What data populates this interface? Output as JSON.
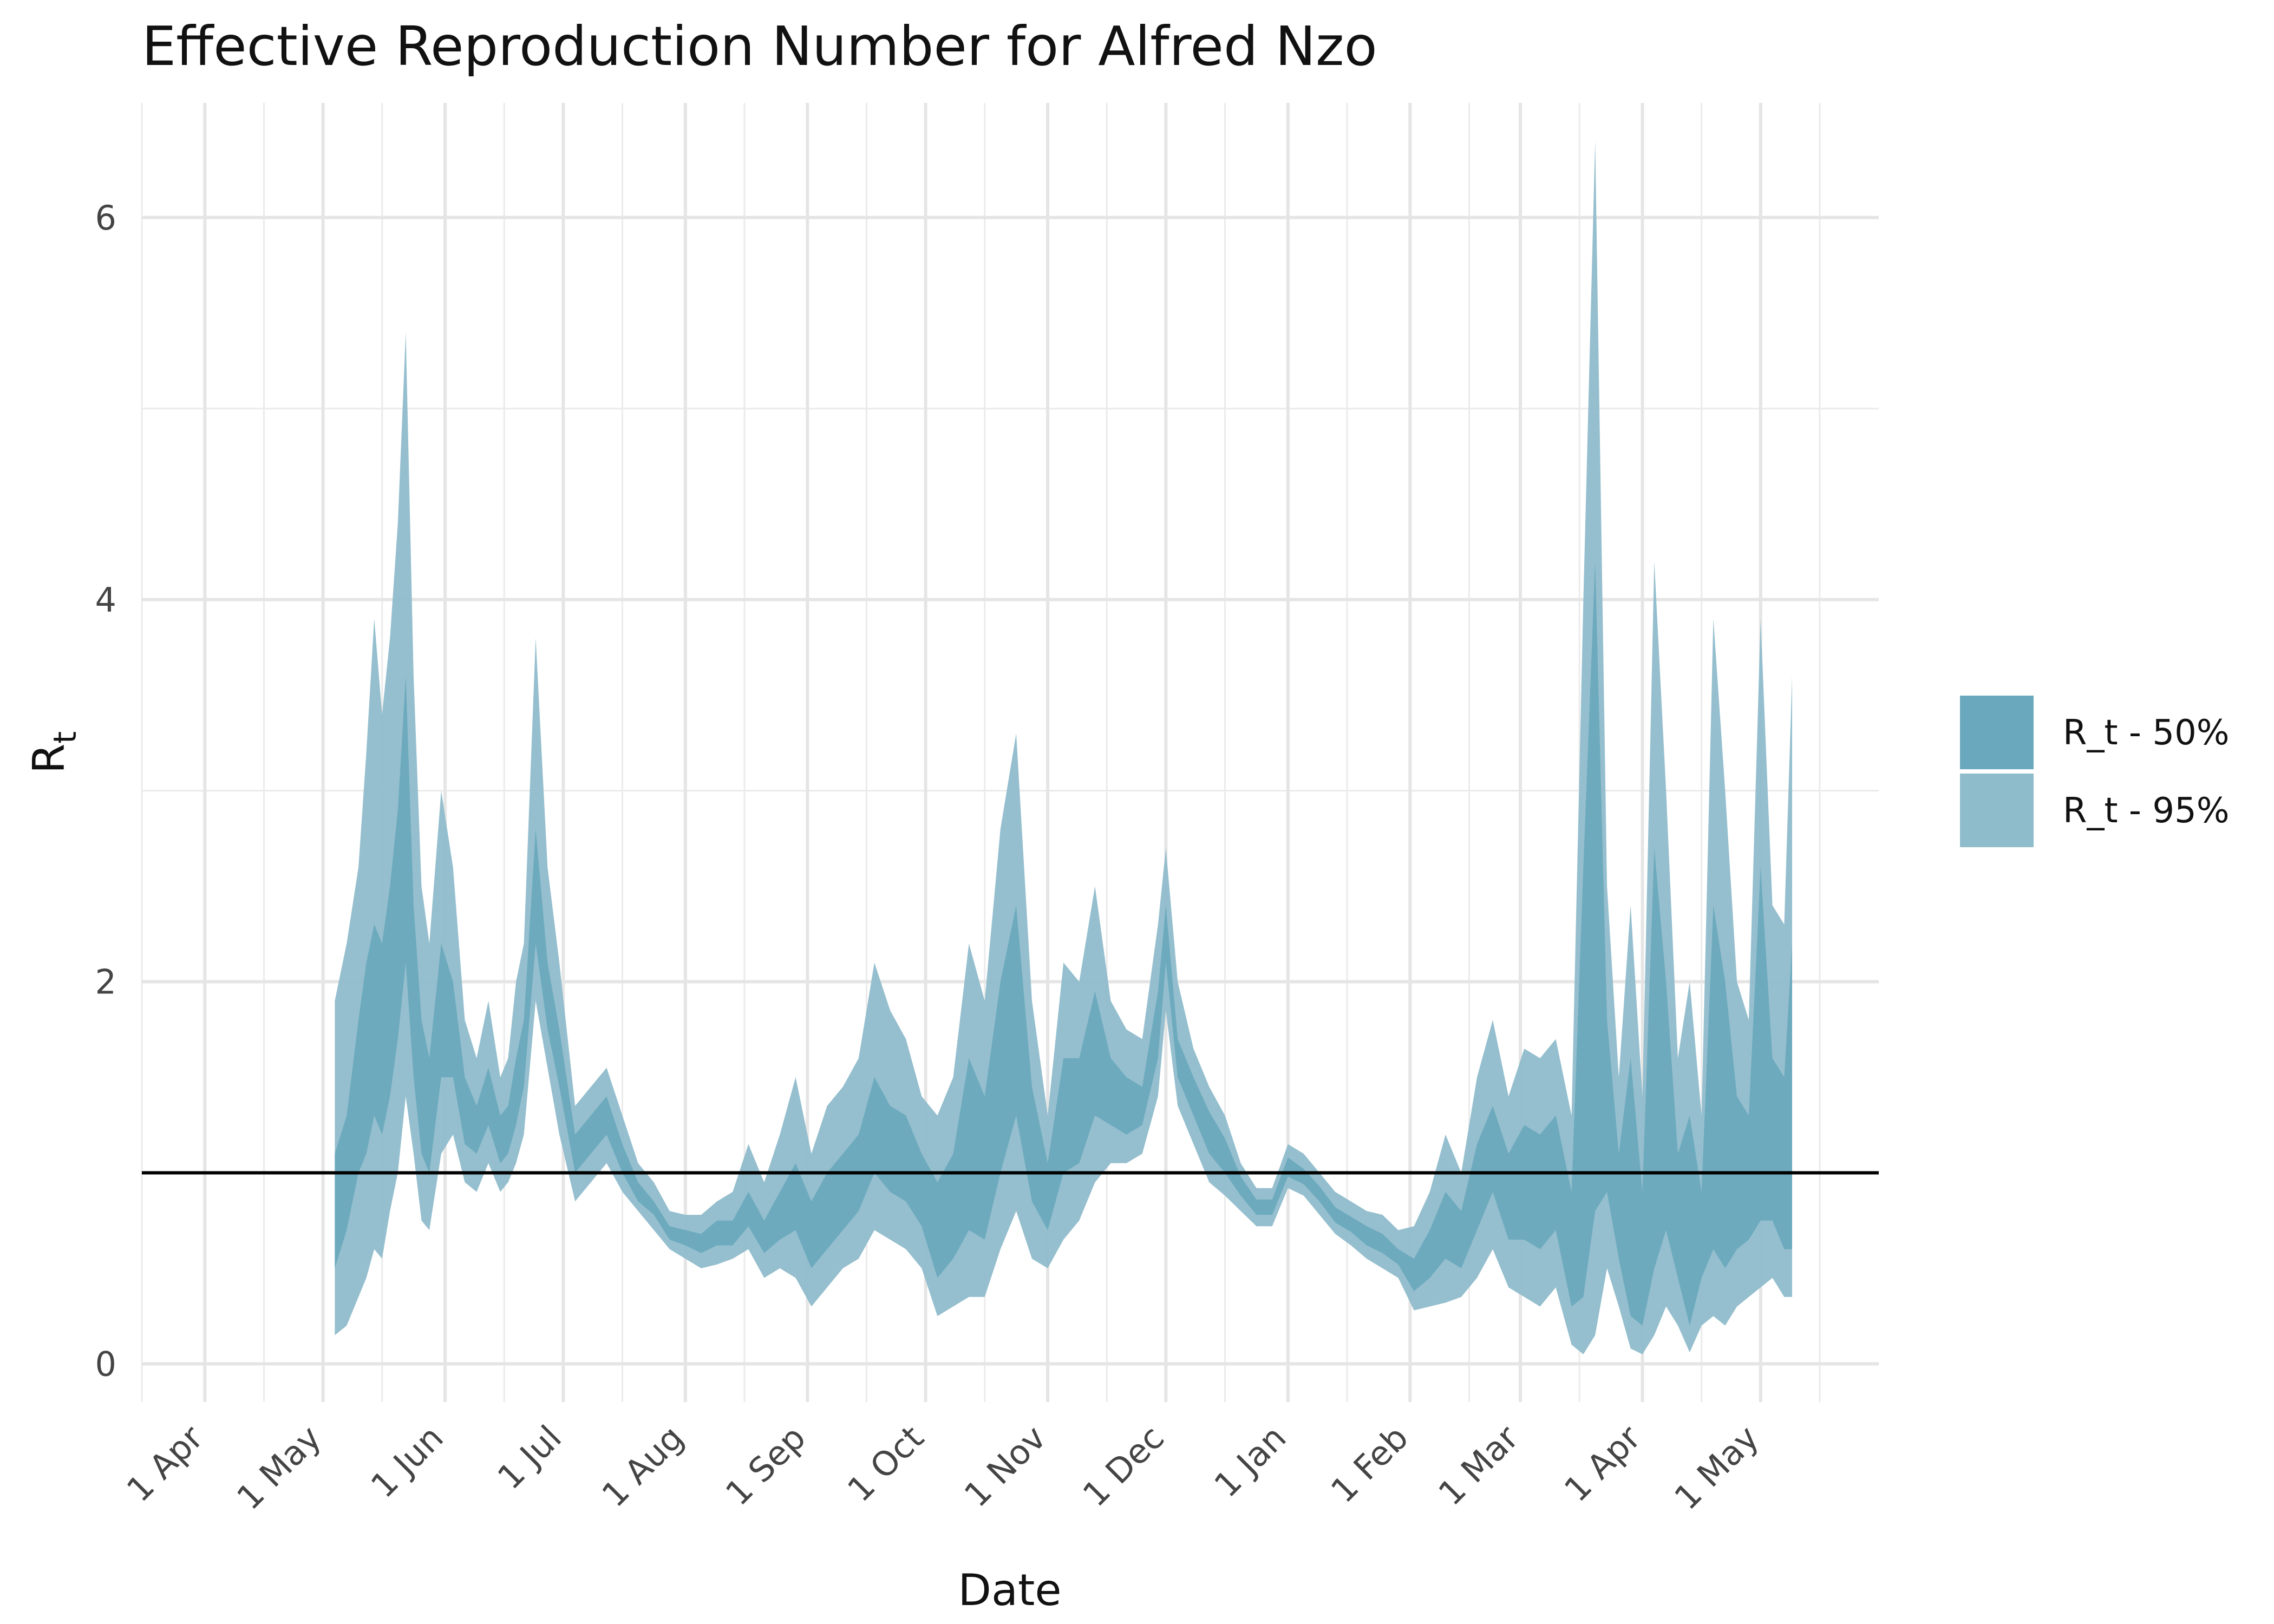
{
  "chart_data": {
    "type": "area",
    "title": "Effective Reproduction Number for Alfred Nzo",
    "xlabel": "Date",
    "ylabel": "R",
    "ylabel_subscript": "t",
    "xlim": [
      "2020-03-16",
      "2021-05-31"
    ],
    "ylim": [
      -0.2,
      6.6
    ],
    "x_ticks": [
      {
        "date": "2020-04-01",
        "label": "1 Apr"
      },
      {
        "date": "2020-05-01",
        "label": "1 May"
      },
      {
        "date": "2020-06-01",
        "label": "1 Jun"
      },
      {
        "date": "2020-07-01",
        "label": "1 Jul"
      },
      {
        "date": "2020-08-01",
        "label": "1 Aug"
      },
      {
        "date": "2020-09-01",
        "label": "1 Sep"
      },
      {
        "date": "2020-10-01",
        "label": "1 Oct"
      },
      {
        "date": "2020-11-01",
        "label": "1 Nov"
      },
      {
        "date": "2020-12-01",
        "label": "1 Dec"
      },
      {
        "date": "2021-01-01",
        "label": "1 Jan"
      },
      {
        "date": "2021-02-01",
        "label": "1 Feb"
      },
      {
        "date": "2021-03-01",
        "label": "1 Mar"
      },
      {
        "date": "2021-04-01",
        "label": "1 Apr"
      },
      {
        "date": "2021-05-01",
        "label": "1 May"
      }
    ],
    "x_minor_ticks": [
      "2020-03-16",
      "2020-04-16",
      "2020-05-16",
      "2020-06-16",
      "2020-07-16",
      "2020-08-16",
      "2020-09-16",
      "2020-10-16",
      "2020-11-16",
      "2020-12-16",
      "2021-01-16",
      "2021-02-16",
      "2021-03-16",
      "2021-04-16",
      "2021-05-16"
    ],
    "y_ticks": [
      0,
      2,
      4,
      6
    ],
    "y_minor_ticks": [
      1,
      3,
      5
    ],
    "reference_line": {
      "y": 1,
      "color": "#000000"
    },
    "grid": true,
    "legend_position": "right",
    "series": [
      {
        "name": "R_t - 95%",
        "color": "#8fbccb",
        "x": [
          "2020-05-04",
          "2020-05-07",
          "2020-05-10",
          "2020-05-12",
          "2020-05-14",
          "2020-05-16",
          "2020-05-18",
          "2020-05-20",
          "2020-05-22",
          "2020-05-24",
          "2020-05-26",
          "2020-05-28",
          "2020-05-31",
          "2020-06-03",
          "2020-06-06",
          "2020-06-09",
          "2020-06-12",
          "2020-06-15",
          "2020-06-17",
          "2020-06-19",
          "2020-06-21",
          "2020-06-24",
          "2020-06-27",
          "2020-06-30",
          "2020-07-04",
          "2020-07-08",
          "2020-07-12",
          "2020-07-16",
          "2020-07-20",
          "2020-07-24",
          "2020-07-28",
          "2020-08-01",
          "2020-08-05",
          "2020-08-09",
          "2020-08-13",
          "2020-08-17",
          "2020-08-21",
          "2020-08-25",
          "2020-08-29",
          "2020-09-02",
          "2020-09-06",
          "2020-09-10",
          "2020-09-14",
          "2020-09-18",
          "2020-09-22",
          "2020-09-26",
          "2020-09-30",
          "2020-10-04",
          "2020-10-08",
          "2020-10-12",
          "2020-10-16",
          "2020-10-20",
          "2020-10-24",
          "2020-10-28",
          "2020-11-01",
          "2020-11-05",
          "2020-11-09",
          "2020-11-13",
          "2020-11-17",
          "2020-11-21",
          "2020-11-25",
          "2020-11-29",
          "2020-12-01",
          "2020-12-04",
          "2020-12-08",
          "2020-12-12",
          "2020-12-16",
          "2020-12-20",
          "2020-12-24",
          "2020-12-28",
          "2021-01-01",
          "2021-01-05",
          "2021-01-09",
          "2021-01-13",
          "2021-01-17",
          "2021-01-21",
          "2021-01-25",
          "2021-01-29",
          "2021-02-02",
          "2021-02-06",
          "2021-02-10",
          "2021-02-14",
          "2021-02-18",
          "2021-02-22",
          "2021-02-26",
          "2021-03-02",
          "2021-03-06",
          "2021-03-10",
          "2021-03-14",
          "2021-03-17",
          "2021-03-20",
          "2021-03-23",
          "2021-03-26",
          "2021-03-29",
          "2021-04-01",
          "2021-04-04",
          "2021-04-07",
          "2021-04-10",
          "2021-04-13",
          "2021-04-16",
          "2021-04-19",
          "2021-04-22",
          "2021-04-25",
          "2021-04-28",
          "2021-05-01",
          "2021-05-04",
          "2021-05-07",
          "2021-05-09"
        ],
        "upper": [
          1.9,
          2.2,
          2.6,
          3.2,
          3.9,
          3.4,
          3.8,
          4.4,
          5.4,
          3.6,
          2.5,
          2.2,
          3.0,
          2.6,
          1.8,
          1.6,
          1.9,
          1.5,
          1.6,
          2.0,
          2.2,
          3.8,
          2.6,
          2.1,
          1.35,
          1.45,
          1.55,
          1.3,
          1.05,
          0.95,
          0.8,
          0.78,
          0.78,
          0.85,
          0.9,
          1.15,
          0.95,
          1.2,
          1.5,
          1.1,
          1.35,
          1.45,
          1.6,
          2.1,
          1.85,
          1.7,
          1.4,
          1.3,
          1.5,
          2.2,
          1.9,
          2.8,
          3.3,
          1.9,
          1.3,
          2.1,
          2.0,
          2.5,
          1.9,
          1.75,
          1.7,
          2.3,
          2.7,
          2.0,
          1.65,
          1.45,
          1.3,
          1.05,
          0.92,
          0.92,
          1.15,
          1.1,
          1.0,
          0.9,
          0.85,
          0.8,
          0.78,
          0.7,
          0.72,
          0.9,
          1.2,
          1.0,
          1.5,
          1.8,
          1.4,
          1.65,
          1.6,
          1.7,
          1.3,
          4.0,
          6.4,
          2.5,
          1.5,
          2.4,
          1.4,
          4.2,
          3.0,
          1.6,
          2.0,
          1.3,
          3.9,
          3.0,
          2.0,
          1.8,
          3.9,
          2.4,
          2.3,
          3.6
        ],
        "lower": [
          0.15,
          0.2,
          0.35,
          0.45,
          0.6,
          0.55,
          0.8,
          1.0,
          1.4,
          1.1,
          0.75,
          0.7,
          1.1,
          1.2,
          0.95,
          0.9,
          1.05,
          0.9,
          0.95,
          1.05,
          1.2,
          1.9,
          1.55,
          1.2,
          0.85,
          0.95,
          1.05,
          0.9,
          0.8,
          0.7,
          0.6,
          0.55,
          0.5,
          0.52,
          0.55,
          0.6,
          0.45,
          0.5,
          0.45,
          0.3,
          0.4,
          0.5,
          0.55,
          0.7,
          0.65,
          0.6,
          0.5,
          0.25,
          0.3,
          0.35,
          0.35,
          0.6,
          0.8,
          0.55,
          0.5,
          0.65,
          0.75,
          0.95,
          1.05,
          1.05,
          1.1,
          1.4,
          1.85,
          1.35,
          1.15,
          0.95,
          0.88,
          0.8,
          0.72,
          0.72,
          0.92,
          0.88,
          0.78,
          0.68,
          0.62,
          0.55,
          0.5,
          0.45,
          0.28,
          0.3,
          0.32,
          0.35,
          0.45,
          0.6,
          0.4,
          0.35,
          0.3,
          0.4,
          0.1,
          0.05,
          0.15,
          0.5,
          0.3,
          0.08,
          0.05,
          0.15,
          0.3,
          0.2,
          0.06,
          0.2,
          0.25,
          0.2,
          0.3,
          0.35,
          0.4,
          0.45,
          0.35,
          0.35
        ]
      },
      {
        "name": "R_t - 50%",
        "color": "#6aa9bd",
        "x": [
          "2020-05-04",
          "2020-05-07",
          "2020-05-10",
          "2020-05-12",
          "2020-05-14",
          "2020-05-16",
          "2020-05-18",
          "2020-05-20",
          "2020-05-22",
          "2020-05-24",
          "2020-05-26",
          "2020-05-28",
          "2020-05-31",
          "2020-06-03",
          "2020-06-06",
          "2020-06-09",
          "2020-06-12",
          "2020-06-15",
          "2020-06-17",
          "2020-06-19",
          "2020-06-21",
          "2020-06-24",
          "2020-06-27",
          "2020-06-30",
          "2020-07-04",
          "2020-07-08",
          "2020-07-12",
          "2020-07-16",
          "2020-07-20",
          "2020-07-24",
          "2020-07-28",
          "2020-08-01",
          "2020-08-05",
          "2020-08-09",
          "2020-08-13",
          "2020-08-17",
          "2020-08-21",
          "2020-08-25",
          "2020-08-29",
          "2020-09-02",
          "2020-09-06",
          "2020-09-10",
          "2020-09-14",
          "2020-09-18",
          "2020-09-22",
          "2020-09-26",
          "2020-09-30",
          "2020-10-04",
          "2020-10-08",
          "2020-10-12",
          "2020-10-16",
          "2020-10-20",
          "2020-10-24",
          "2020-10-28",
          "2020-11-01",
          "2020-11-05",
          "2020-11-09",
          "2020-11-13",
          "2020-11-17",
          "2020-11-21",
          "2020-11-25",
          "2020-11-29",
          "2020-12-01",
          "2020-12-04",
          "2020-12-08",
          "2020-12-12",
          "2020-12-16",
          "2020-12-20",
          "2020-12-24",
          "2020-12-28",
          "2021-01-01",
          "2021-01-05",
          "2021-01-09",
          "2021-01-13",
          "2021-01-17",
          "2021-01-21",
          "2021-01-25",
          "2021-01-29",
          "2021-02-02",
          "2021-02-06",
          "2021-02-10",
          "2021-02-14",
          "2021-02-18",
          "2021-02-22",
          "2021-02-26",
          "2021-03-02",
          "2021-03-06",
          "2021-03-10",
          "2021-03-14",
          "2021-03-17",
          "2021-03-20",
          "2021-03-23",
          "2021-03-26",
          "2021-03-29",
          "2021-04-01",
          "2021-04-04",
          "2021-04-07",
          "2021-04-10",
          "2021-04-13",
          "2021-04-16",
          "2021-04-19",
          "2021-04-22",
          "2021-04-25",
          "2021-04-28",
          "2021-05-01",
          "2021-05-04",
          "2021-05-07",
          "2021-05-09"
        ],
        "upper": [
          1.1,
          1.3,
          1.8,
          2.1,
          2.3,
          2.2,
          2.5,
          2.9,
          3.6,
          2.4,
          1.8,
          1.6,
          2.2,
          2.0,
          1.5,
          1.35,
          1.55,
          1.3,
          1.35,
          1.6,
          1.8,
          2.8,
          2.1,
          1.75,
          1.2,
          1.3,
          1.4,
          1.15,
          0.95,
          0.85,
          0.72,
          0.7,
          0.68,
          0.75,
          0.75,
          0.9,
          0.75,
          0.9,
          1.05,
          0.85,
          1.0,
          1.1,
          1.2,
          1.5,
          1.35,
          1.3,
          1.1,
          0.95,
          1.1,
          1.6,
          1.4,
          2.0,
          2.4,
          1.45,
          1.05,
          1.6,
          1.6,
          1.95,
          1.6,
          1.5,
          1.45,
          1.95,
          2.4,
          1.7,
          1.5,
          1.32,
          1.18,
          0.98,
          0.86,
          0.86,
          1.08,
          1.02,
          0.93,
          0.82,
          0.77,
          0.72,
          0.68,
          0.6,
          0.55,
          0.7,
          0.9,
          0.8,
          1.15,
          1.35,
          1.1,
          1.25,
          1.2,
          1.3,
          0.9,
          2.6,
          4.2,
          1.8,
          1.1,
          1.6,
          0.9,
          2.7,
          2.0,
          1.1,
          1.3,
          0.9,
          2.4,
          2.0,
          1.4,
          1.3,
          2.6,
          1.6,
          1.5,
          2.2
        ],
        "lower": [
          0.5,
          0.7,
          1.0,
          1.1,
          1.3,
          1.2,
          1.4,
          1.7,
          2.1,
          1.5,
          1.1,
          1.0,
          1.5,
          1.5,
          1.15,
          1.1,
          1.25,
          1.05,
          1.1,
          1.25,
          1.45,
          2.2,
          1.75,
          1.45,
          1.0,
          1.1,
          1.2,
          1.0,
          0.85,
          0.78,
          0.65,
          0.62,
          0.58,
          0.62,
          0.62,
          0.72,
          0.58,
          0.65,
          0.7,
          0.5,
          0.6,
          0.7,
          0.8,
          1.0,
          0.9,
          0.85,
          0.72,
          0.45,
          0.55,
          0.7,
          0.65,
          1.0,
          1.3,
          0.85,
          0.7,
          1.0,
          1.05,
          1.3,
          1.25,
          1.2,
          1.25,
          1.6,
          2.1,
          1.5,
          1.3,
          1.1,
          1.0,
          0.88,
          0.78,
          0.78,
          0.98,
          0.94,
          0.85,
          0.74,
          0.69,
          0.62,
          0.58,
          0.52,
          0.38,
          0.45,
          0.55,
          0.5,
          0.7,
          0.9,
          0.65,
          0.65,
          0.6,
          0.7,
          0.3,
          0.35,
          0.8,
          0.9,
          0.55,
          0.25,
          0.2,
          0.5,
          0.7,
          0.45,
          0.2,
          0.45,
          0.6,
          0.5,
          0.6,
          0.65,
          0.75,
          0.75,
          0.6,
          0.6
        ]
      }
    ]
  }
}
